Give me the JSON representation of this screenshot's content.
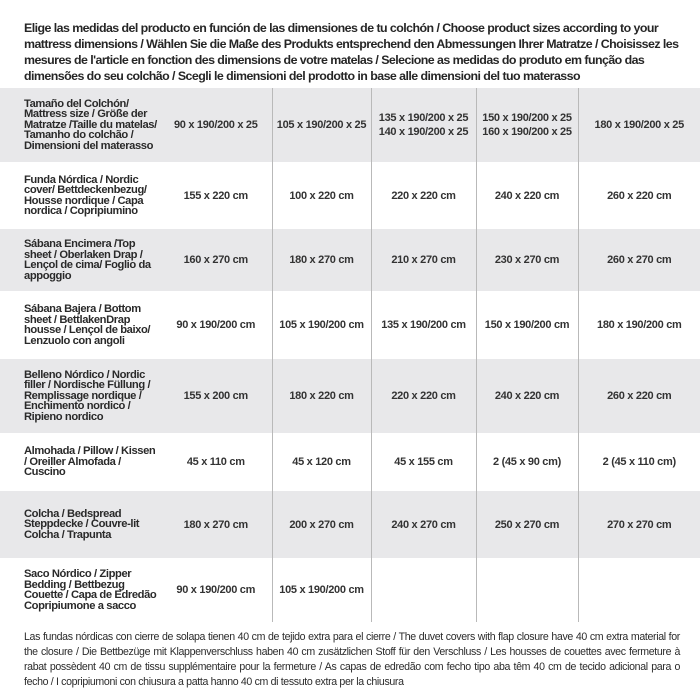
{
  "intro": "Elige las medidas del producto en función de las dimensiones de tu colchón / Choose product sizes according to your mattress dimensions / Wählen Sie die Maße des Produkts entsprechend den Abmessungen Ihrer Matratze / Choisissez les mesures de l'article en fonction des dimensions de votre matelas / Selecione as medidas do produto em função das dimensões do seu colchão / Scegli le dimensioni del prodotto in base alle dimensioni del tuo materasso",
  "table": {
    "header": {
      "label": "Tamaño del Colchón/ Mattress size / Größe der Matratze /Taille du matelas/ Tamanho do colchão / Dimensioni del materasso",
      "sizes": [
        [
          "90 x 190/200 x 25"
        ],
        [
          "105 x 190/200 x 25"
        ],
        [
          "135 x 190/200 x 25",
          "140 x 190/200 x 25"
        ],
        [
          "150 x 190/200 x 25",
          "160 x 190/200 x 25"
        ],
        [
          "180 x 190/200 x 25"
        ]
      ]
    },
    "rows": [
      {
        "label": "Funda Nórdica /  Nordic cover/ Bettdeckenbezug/ Housse nordique  / Capa nordica / Copripiumino",
        "values": [
          "155 x 220 cm",
          "100 x 220 cm",
          "220 x 220 cm",
          "240 x 220 cm",
          "260 x 220 cm"
        ]
      },
      {
        "label": "Sábana Encimera /Top sheet / Oberlaken Drap / Lençol de cima/ Foglio da appoggio",
        "values": [
          "160 x 270 cm",
          "180 x 270 cm",
          "210 x 270 cm",
          "230 x 270 cm",
          "260 x 270 cm"
        ]
      },
      {
        "label": "Sábana Bajera / Bottom sheet / BettlakenDrap housse / Lençol de baixo/ Lenzuolo con angoli",
        "values": [
          "90 x 190/200 cm",
          "105 x 190/200 cm",
          "135 x 190/200 cm",
          "150 x 190/200 cm",
          "180 x 190/200 cm"
        ]
      },
      {
        "label": "Belleno Nórdico / Nordic filler / Nordische Füllung / Remplissage nordique / Enchimento nordico / Ripieno nordico",
        "values": [
          "155 x 200 cm",
          "180 x 220 cm",
          "220 x 220 cm",
          "240 x 220 cm",
          "260 x 220 cm"
        ]
      },
      {
        "label": "Almohada  / Pillow / Kissen / Oreiller Almofada / Cuscino",
        "values": [
          "45 x 110 cm",
          "45 x 120 cm",
          "45 x 155 cm",
          "2 (45 x 90 cm)",
          "2 (45 x 110 cm)"
        ]
      },
      {
        "label": "Colcha / Bedspread Steppdecke / Couvre-lit Colcha / Trapunta",
        "values": [
          "180 x 270 cm",
          "200 x 270 cm",
          "240 x 270 cm",
          "250 x 270 cm",
          "270 x 270 cm"
        ]
      },
      {
        "label": "Saco Nórdico / Zipper Bedding / Bettbezug Couette  / Capa de Edredão Copripiumone a sacco",
        "values": [
          "90 x 190/200 cm",
          "105 x 190/200 cm",
          "",
          "",
          ""
        ]
      }
    ]
  },
  "footer": "Las fundas nórdicas con cierre de solapa tienen 40 cm de tejido extra para el cierre  / The duvet covers with flap closure have 40 cm extra material for the closure / Die Bettbezüge mit Klappenverschluss haben 40 cm zusätzlichen Stoff für den Verschluss / Les housses de couettes avec fermeture à rabat possèdent 40 cm de tissu supplémentaire pour la fermeture / As capas de edredão com fecho tipo aba têm 40 cm de tecido adicional para o fecho / I copripiumoni con chiusura a patta hanno 40 cm di tessuto extra per la chiusura"
}
